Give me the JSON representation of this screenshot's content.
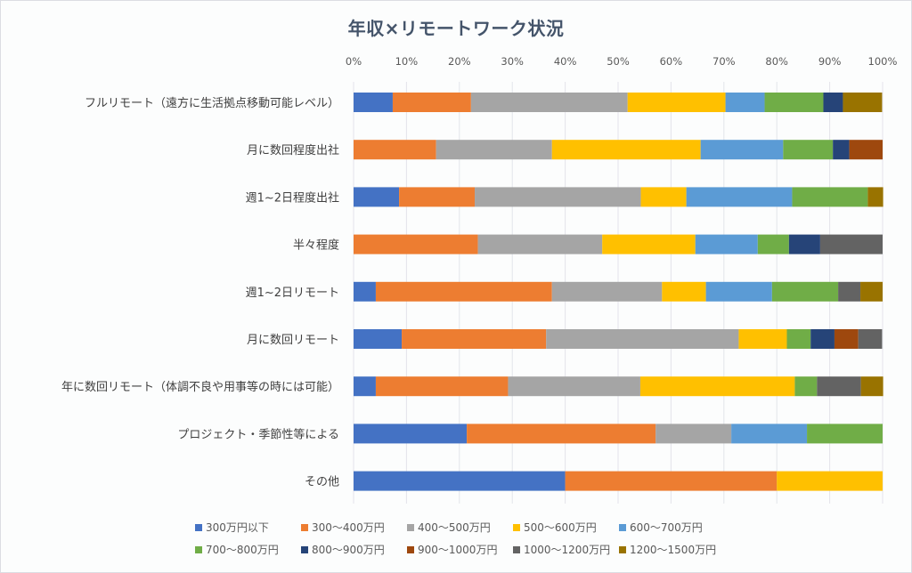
{
  "chart_data": {
    "type": "bar",
    "orientation": "horizontal",
    "stacking": "percent",
    "title": "年収×リモートワーク状況",
    "xlabel": "",
    "ylabel": "",
    "xlim": [
      0,
      100
    ],
    "x_ticks": [
      "0%",
      "10%",
      "20%",
      "30%",
      "40%",
      "50%",
      "60%",
      "70%",
      "80%",
      "90%",
      "100%"
    ],
    "x_axis_position": "top",
    "grid": true,
    "legend_position": "bottom",
    "categories": [
      "フルリモート（遠方に生活拠点移動可能レベル）",
      "月に数回程度出社",
      "週1~2日程度出社",
      "半々程度",
      "週1~2日リモート",
      "月に数回リモート",
      "年に数回リモート（体調不良や用事等の時には可能）",
      "プロジェクト・季節性等による",
      "その他"
    ],
    "series": [
      {
        "name": "300万円以下",
        "color": "#4472c4",
        "values": [
          7.4,
          0,
          8.6,
          0,
          4.2,
          9.1,
          4.2,
          21.4,
          40
        ]
      },
      {
        "name": "300〜400万円",
        "color": "#ed7d31",
        "values": [
          14.8,
          15.6,
          14.3,
          23.5,
          33.3,
          27.3,
          25.0,
          35.7,
          40
        ]
      },
      {
        "name": "400〜500万円",
        "color": "#a5a5a5",
        "values": [
          29.6,
          21.9,
          31.4,
          23.5,
          20.8,
          36.4,
          25.0,
          14.3,
          0
        ]
      },
      {
        "name": "500〜600万円",
        "color": "#ffc000",
        "values": [
          18.5,
          28.1,
          8.6,
          17.6,
          8.3,
          9.1,
          29.2,
          0,
          20
        ]
      },
      {
        "name": "600〜700万円",
        "color": "#5b9bd5",
        "values": [
          7.4,
          15.6,
          20.0,
          11.8,
          12.5,
          0,
          0,
          14.3,
          0
        ]
      },
      {
        "name": "700〜800万円",
        "color": "#70ad47",
        "values": [
          11.1,
          9.4,
          14.3,
          5.9,
          12.5,
          4.5,
          4.2,
          14.3,
          0
        ]
      },
      {
        "name": "800〜900万円",
        "color": "#264478",
        "values": [
          3.7,
          3.1,
          0,
          5.9,
          0,
          4.5,
          0,
          0,
          0
        ]
      },
      {
        "name": "900〜1000万円",
        "color": "#9e480e",
        "values": [
          0,
          6.3,
          0,
          0,
          0,
          4.5,
          0,
          0,
          0
        ]
      },
      {
        "name": "1000〜1200万円",
        "color": "#636363",
        "values": [
          0,
          0,
          0,
          11.8,
          4.2,
          4.5,
          8.3,
          0,
          0
        ]
      },
      {
        "name": "1200〜1500万円",
        "color": "#997300",
        "values": [
          7.4,
          0,
          2.9,
          0,
          4.2,
          0,
          4.2,
          0,
          0
        ]
      }
    ]
  }
}
